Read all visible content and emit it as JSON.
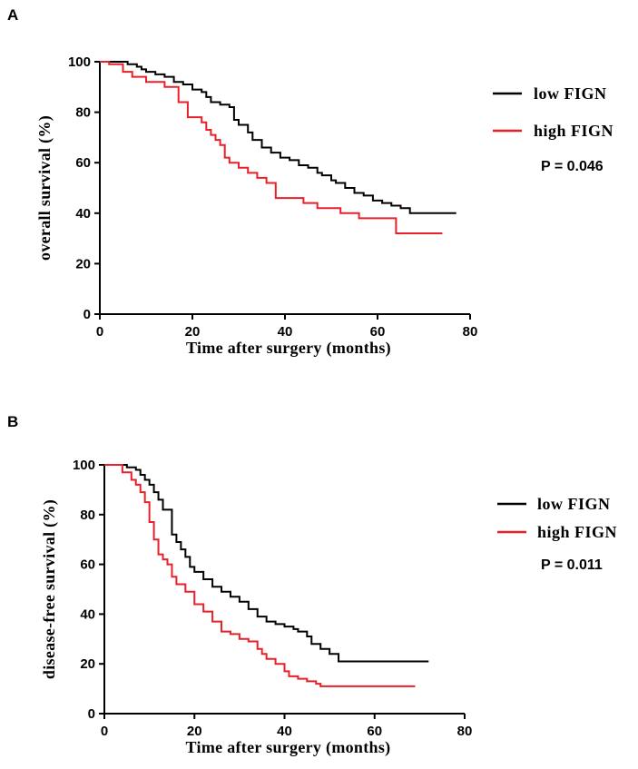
{
  "chart_data": [
    {
      "panel": "A",
      "type": "line",
      "title": "",
      "xlabel": "Time after surgery (months)",
      "ylabel": "overall survival (%)",
      "xlim": [
        0,
        80
      ],
      "ylim": [
        0,
        100
      ],
      "xticks": [
        0,
        20,
        40,
        60,
        80
      ],
      "yticks": [
        0,
        20,
        40,
        60,
        80,
        100
      ],
      "grid": false,
      "legend_position": "right",
      "annotation": "P = 0.046",
      "series": [
        {
          "name": "low FIGN",
          "color": "#000000",
          "step": true,
          "x": [
            0,
            6,
            8,
            9,
            10,
            12,
            14,
            16,
            18,
            20,
            22,
            23,
            24,
            26,
            28,
            29,
            30,
            32,
            33,
            35,
            37,
            39,
            41,
            43,
            45,
            47,
            48,
            50,
            51,
            53,
            55,
            57,
            59,
            61,
            63,
            65,
            67,
            77
          ],
          "y": [
            100,
            99,
            98,
            97,
            96,
            95,
            94,
            92,
            91,
            89,
            88,
            86,
            84,
            83,
            82,
            77,
            75,
            72,
            69,
            66,
            64,
            62,
            61,
            59,
            58,
            56,
            55,
            53,
            52,
            50,
            48,
            47,
            45,
            44,
            43,
            42,
            40,
            40
          ]
        },
        {
          "name": "high FIGN",
          "color": "#e8202a",
          "step": true,
          "x": [
            0,
            2,
            5,
            7,
            10,
            14,
            17,
            19,
            22,
            23,
            24,
            25,
            26,
            27,
            28,
            30,
            32,
            34,
            36,
            38,
            44,
            47,
            52,
            56,
            60,
            62,
            64,
            74
          ],
          "y": [
            100,
            99,
            96,
            94,
            92,
            90,
            84,
            78,
            76,
            73,
            71,
            69,
            67,
            62,
            60,
            58,
            56,
            54,
            52,
            46,
            44,
            42,
            40,
            38,
            38,
            38,
            32,
            32
          ]
        }
      ]
    },
    {
      "panel": "B",
      "type": "line",
      "title": "",
      "xlabel": "Time after surgery (months)",
      "ylabel": "disease-free survival (%)",
      "xlim": [
        0,
        80
      ],
      "ylim": [
        0,
        100
      ],
      "xticks": [
        0,
        20,
        40,
        60,
        80
      ],
      "yticks": [
        0,
        20,
        40,
        60,
        80,
        100
      ],
      "grid": false,
      "legend_position": "right",
      "annotation": "P = 0.011",
      "series": [
        {
          "name": "low FIGN",
          "color": "#000000",
          "step": true,
          "x": [
            0,
            5,
            7,
            8,
            9,
            10,
            11,
            12,
            13,
            15,
            16,
            17,
            18,
            19,
            20,
            22,
            24,
            26,
            28,
            30,
            32,
            34,
            36,
            38,
            40,
            42,
            43,
            45,
            46,
            48,
            50,
            52,
            72
          ],
          "y": [
            100,
            99,
            98,
            96,
            94,
            92,
            89,
            86,
            82,
            72,
            69,
            66,
            63,
            59,
            57,
            54,
            51,
            49,
            47,
            45,
            42,
            39,
            37,
            36,
            35,
            34,
            33,
            31,
            28,
            26,
            24,
            21,
            21
          ]
        },
        {
          "name": "high FIGN",
          "color": "#e8202a",
          "step": true,
          "x": [
            0,
            4,
            6,
            7,
            8,
            9,
            10,
            11,
            12,
            13,
            14,
            15,
            16,
            18,
            20,
            22,
            24,
            26,
            28,
            30,
            32,
            34,
            35,
            36,
            38,
            40,
            41,
            43,
            45,
            47,
            48,
            69
          ],
          "y": [
            100,
            97,
            94,
            92,
            89,
            85,
            77,
            70,
            64,
            62,
            60,
            55,
            52,
            49,
            44,
            41,
            37,
            33,
            32,
            30,
            29,
            26,
            24,
            22,
            20,
            17,
            15,
            14,
            13,
            12,
            11,
            11
          ]
        }
      ]
    }
  ]
}
